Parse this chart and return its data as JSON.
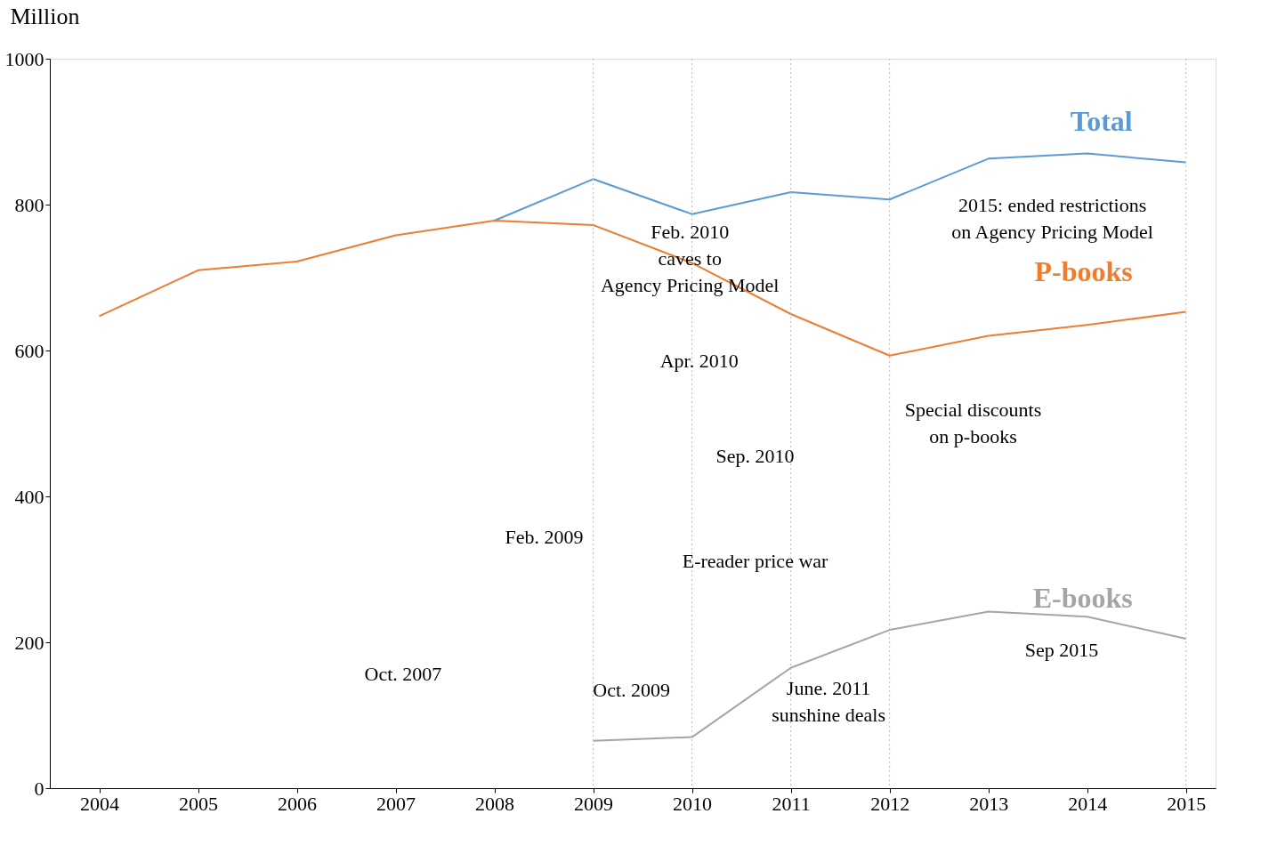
{
  "chart_data": {
    "type": "line",
    "ylabel": "Million",
    "x": [
      2004,
      2005,
      2006,
      2007,
      2008,
      2009,
      2010,
      2011,
      2012,
      2013,
      2014,
      2015
    ],
    "series": [
      {
        "name": "Total",
        "color": "#5b9bd5",
        "values": [
          null,
          null,
          null,
          null,
          778,
          835,
          787,
          817,
          807,
          863,
          870,
          858
        ]
      },
      {
        "name": "P-books",
        "color": "#ed7d31",
        "values": [
          647,
          710,
          722,
          758,
          778,
          772,
          720,
          650,
          593,
          620,
          635,
          653
        ]
      },
      {
        "name": "E-books",
        "color": "#a5a5a5",
        "values": [
          null,
          null,
          null,
          null,
          null,
          65,
          70,
          165,
          217,
          242,
          235,
          205
        ]
      }
    ],
    "xlim": [
      2003.5,
      2015.3
    ],
    "xticks": [
      2004,
      2005,
      2006,
      2007,
      2008,
      2009,
      2010,
      2011,
      2012,
      2013,
      2014,
      2015
    ],
    "ylim": [
      0,
      1000
    ],
    "yticks": [
      0,
      200,
      400,
      600,
      800,
      {
        "value": 1000,
        "label": "1000"
      }
    ],
    "grid": false,
    "legend": false,
    "marker": "none",
    "line_style": "solid",
    "ref_lines": [
      {
        "axis": "x",
        "value": 2009,
        "color": "#bbbbbb",
        "line_style": "dotted"
      },
      {
        "axis": "x",
        "value": 2010,
        "color": "#bbbbbb",
        "line_style": "dotted"
      },
      {
        "axis": "x",
        "value": 2011,
        "color": "#bbbbbb",
        "line_style": "dotted"
      },
      {
        "axis": "x",
        "value": 2012,
        "color": "#bbbbbb",
        "line_style": "dotted"
      },
      {
        "axis": "x",
        "value": 2015,
        "color": "#bbbbbb",
        "line_style": "dotted"
      }
    ],
    "annotations": [
      "Oct. 2007",
      "Feb. 2009",
      "Oct. 2009",
      "Feb. 2010\ncaves to\nAgency Pricing Model",
      "Apr. 2010",
      "Sep. 2010",
      "E-reader price war",
      "June. 2011\nsunshine deals",
      "Special discounts\non p-books",
      "2015: ended restrictions\non Agency Pricing Model",
      "Sep 2015"
    ]
  }
}
